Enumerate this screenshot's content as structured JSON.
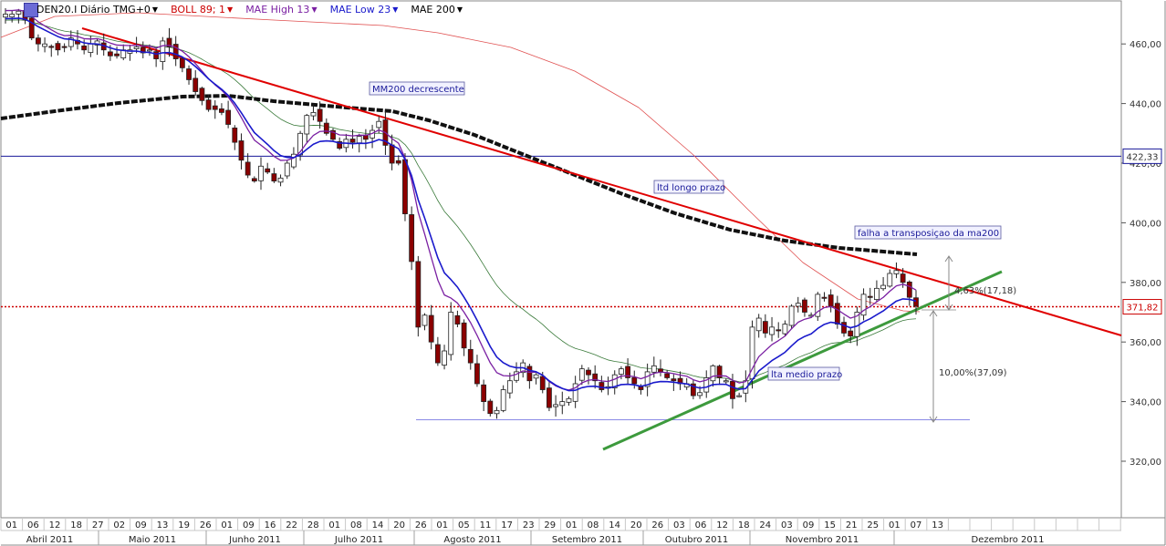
{
  "legend": {
    "symbol": "DEN20.I Diário TMG+0",
    "items": [
      {
        "label": "BOLL 89; 1",
        "color": "#cc0000"
      },
      {
        "label": "MAE High  13",
        "color": "#7a1fa2"
      },
      {
        "label": "MAE Low  23",
        "color": "#1a1acc"
      },
      {
        "label": "MAE 200",
        "color": "#000000"
      }
    ]
  },
  "chart_data": {
    "type": "candlestick",
    "ylim": [
      304,
      474
    ],
    "yticks": [
      320,
      340,
      360,
      380,
      400,
      420,
      440,
      460
    ],
    "ytick_labels": [
      "320,00",
      "340,00",
      "360,00",
      "380,00",
      "400,00",
      "420,00",
      "440,00",
      "460,00"
    ],
    "price_markers": [
      {
        "value": 422.33,
        "label": "422,33",
        "color": "#1a1a99",
        "style": "solid"
      },
      {
        "value": 371.82,
        "label": "371,82",
        "color": "#cc0000",
        "style": "dotted"
      }
    ],
    "day_ticks": [
      "01",
      "06",
      "12",
      "18",
      "27",
      "02",
      "09",
      "13",
      "19",
      "26",
      "01",
      "09",
      "16",
      "22",
      "28",
      "01",
      "08",
      "14",
      "20",
      "26",
      "01",
      "05",
      "11",
      "17",
      "23",
      "29",
      "01",
      "08",
      "14",
      "20",
      "26",
      "03",
      "06",
      "12",
      "18",
      "24",
      "03",
      "09",
      "15",
      "21",
      "25",
      "01",
      "07",
      "13"
    ],
    "months": [
      "Abril 2011",
      "Maio 2011",
      "Junho 2011",
      "Julho 2011",
      "Agosto 2011",
      "Setembro 2011",
      "Outubro 2011",
      "Novembro 2011",
      "Dezembro 2011"
    ],
    "candles_close": [
      470,
      470,
      471,
      468,
      462,
      460,
      460,
      459,
      458,
      459,
      462,
      460,
      458,
      460,
      461,
      458,
      456,
      456,
      458,
      458,
      459,
      457,
      458,
      455,
      461,
      459,
      455,
      452,
      448,
      444,
      441,
      438,
      438,
      437,
      433,
      427,
      421,
      416,
      414,
      419,
      417,
      414,
      415,
      420,
      423,
      430,
      436,
      437,
      434,
      430,
      428,
      425,
      428,
      427,
      429,
      428,
      431,
      434,
      426,
      420,
      420,
      403,
      387,
      365,
      369,
      360,
      353,
      357,
      370,
      366,
      358,
      353,
      346,
      340,
      336,
      337,
      344,
      347,
      350,
      353,
      347,
      349,
      344,
      338,
      339,
      340,
      341,
      346,
      351,
      349,
      347,
      344,
      345,
      349,
      351,
      348,
      346,
      344,
      350,
      352,
      350,
      348,
      347,
      346,
      346,
      342,
      343,
      348,
      352,
      348,
      347,
      341,
      342,
      347,
      365,
      368,
      363,
      365,
      364,
      366,
      372,
      373,
      370,
      369,
      376,
      375,
      372,
      366,
      363,
      362,
      370,
      376,
      375,
      378,
      379,
      383,
      384,
      380,
      375,
      372
    ],
    "annotations": [
      {
        "text": "MM200 decrescente"
      },
      {
        "text": "ltd longo prazo"
      },
      {
        "text": "falha  a transposiçao da ma200"
      },
      {
        "text": "lta medio prazo"
      },
      {
        "text": "4,63%(17,18)"
      },
      {
        "text": "10,00%(37,09)"
      }
    ]
  }
}
